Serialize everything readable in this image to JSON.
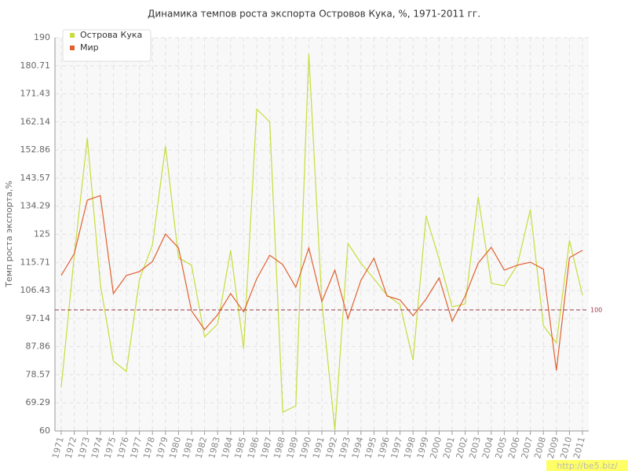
{
  "chart_data": {
    "type": "line",
    "title": "Динамика темпов роста экспорта Островов Кука, %, 1971-2011 гг.",
    "y_label": "Темп роста экспорта,%",
    "categories": [
      "1971",
      "1972",
      "1973",
      "1974",
      "1975",
      "1976",
      "1977",
      "1978",
      "1979",
      "1980",
      "1981",
      "1982",
      "1983",
      "1984",
      "1985",
      "1986",
      "1987",
      "1988",
      "1989",
      "1990",
      "1991",
      "1992",
      "1993",
      "1994",
      "1995",
      "1996",
      "1997",
      "1998",
      "1999",
      "2000",
      "2001",
      "2002",
      "2003",
      "2004",
      "2005",
      "2006",
      "2007",
      "2008",
      "2009",
      "2010",
      "2011"
    ],
    "series": [
      {
        "name": "Острова Кука",
        "color": "#c8dc3c",
        "values": [
          74.5,
          118,
          156.8,
          108.5,
          83.1,
          79.7,
          110,
          121.5,
          154.2,
          117.3,
          114.8,
          91.1,
          95.3,
          119.7,
          87.2,
          166.4,
          162.2,
          66.2,
          68.3,
          184.6,
          102.6,
          60.3,
          122,
          115.5,
          110.3,
          104.9,
          101.8,
          83.4,
          131.1,
          116.8,
          101,
          102,
          137.3,
          108.8,
          108,
          114.8,
          133.2,
          94.8,
          89.1,
          123,
          104.9
        ]
      },
      {
        "name": "Мир",
        "color": "#e06030",
        "values": [
          111.4,
          118.6,
          136.3,
          137.8,
          105.4,
          111.4,
          112.7,
          116,
          125.1,
          120.5,
          99.7,
          93.5,
          98.4,
          105.4,
          99.4,
          110.3,
          118.1,
          115,
          107.5,
          120.5,
          102.8,
          113.2,
          97.1,
          109.8,
          117.1,
          104.6,
          103.3,
          98.1,
          103.6,
          110.6,
          96.3,
          104.6,
          115.5,
          120.7,
          113.2,
          114.8,
          115.8,
          113.5,
          80,
          117.3,
          119.7
        ]
      }
    ],
    "ylim": [
      60,
      190
    ],
    "yticks": [
      60,
      69.29,
      78.57,
      87.86,
      97.14,
      106.43,
      115.71,
      125,
      134.29,
      143.57,
      152.86,
      162.14,
      171.43,
      180.71,
      190
    ],
    "grid": true,
    "reference_line": 100,
    "reference_color": "#9b3a4a",
    "legend": "top-left",
    "watermark": "http://be5.biz/"
  }
}
